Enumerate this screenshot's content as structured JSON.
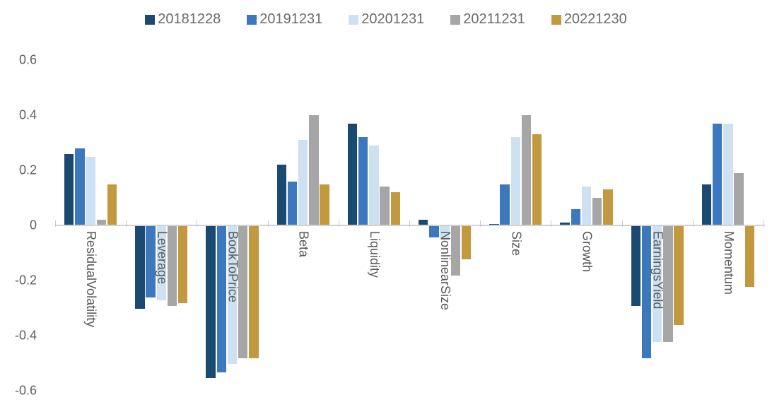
{
  "chart_data": {
    "type": "bar",
    "title": "",
    "xlabel": "",
    "ylabel": "",
    "categories": [
      "ResidualVolatility",
      "Leverage",
      "BookToPrice",
      "Beta",
      "Liquidity",
      "NonlinearSize",
      "Size",
      "Growth",
      "EarningsYield",
      "Momentum"
    ],
    "series": [
      {
        "name": "20181228",
        "color": "#1a4a71",
        "values": [
          0.26,
          -0.3,
          -0.55,
          0.22,
          0.37,
          0.02,
          0.005,
          0.01,
          -0.29,
          0.15
        ]
      },
      {
        "name": "20191231",
        "color": "#3c78be",
        "values": [
          0.28,
          -0.26,
          -0.53,
          0.16,
          0.32,
          -0.04,
          0.15,
          0.06,
          -0.48,
          0.37
        ]
      },
      {
        "name": "20201231",
        "color": "#cee1f2",
        "values": [
          0.25,
          -0.27,
          -0.5,
          0.31,
          0.29,
          -0.05,
          0.32,
          0.14,
          -0.42,
          0.37
        ]
      },
      {
        "name": "20211231",
        "color": "#a6a6a6",
        "values": [
          0.02,
          -0.29,
          -0.48,
          0.4,
          0.14,
          -0.18,
          0.4,
          0.1,
          -0.42,
          0.19
        ]
      },
      {
        "name": "20221230",
        "color": "#c3993f",
        "values": [
          0.15,
          -0.28,
          -0.48,
          0.15,
          0.12,
          -0.12,
          0.33,
          0.13,
          -0.36,
          -0.22
        ]
      }
    ],
    "ytick_labels": [
      "0.6",
      "0.4",
      "0.2",
      "0",
      "-0.2",
      "-0.4",
      "-0.6"
    ],
    "ytick_values": [
      0.6,
      0.4,
      0.2,
      0,
      -0.2,
      -0.4,
      -0.6
    ],
    "ylim": [
      -0.6,
      0.6
    ],
    "legend_position": "top",
    "grid": false,
    "colors": {
      "axis_line": "#d2d2d2",
      "tick_mark": "#c9c9c9",
      "label_text": "#595959",
      "legend_text": "#6b6b6b",
      "background": "#ffffff"
    }
  }
}
